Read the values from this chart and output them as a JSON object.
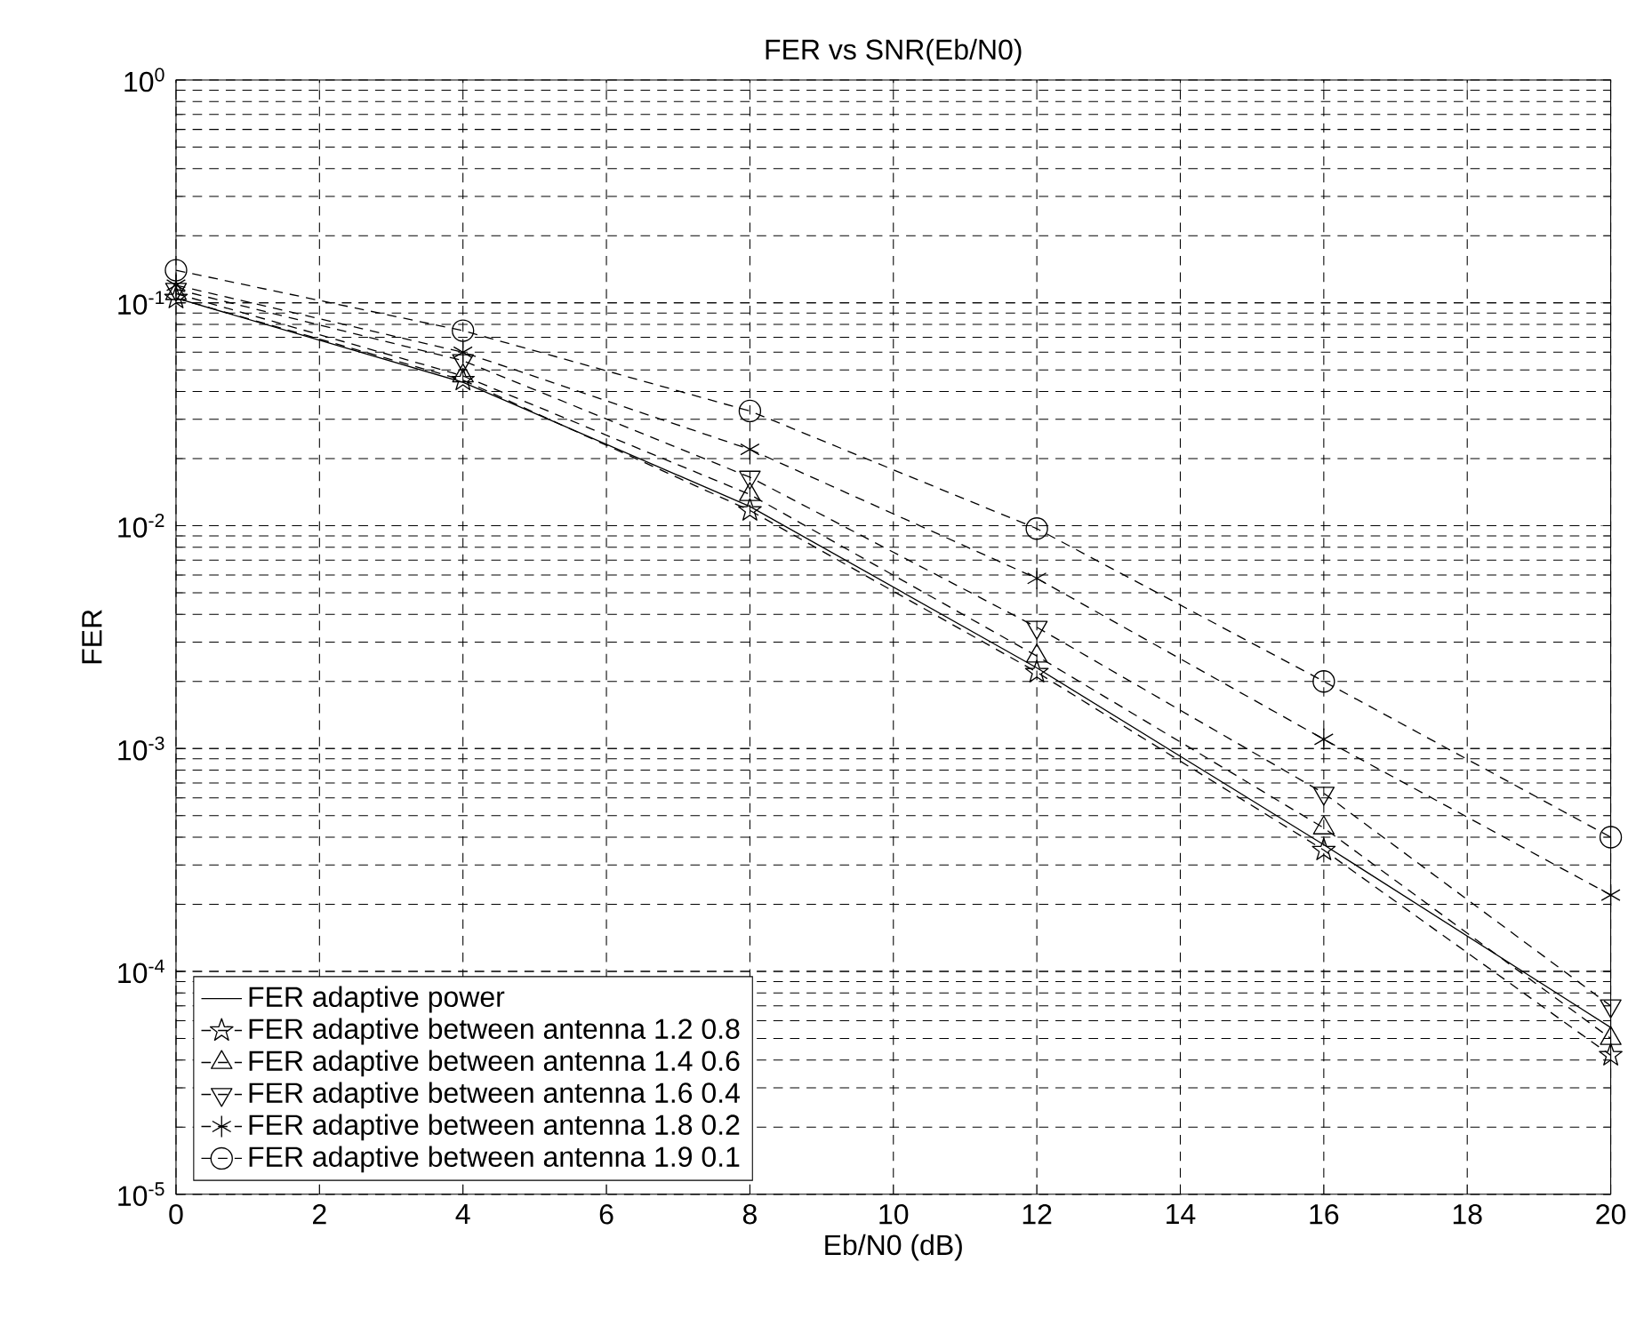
{
  "chart_data": {
    "type": "line",
    "title": "FER vs SNR(Eb/N0)",
    "xlabel": "Eb/N0 (dB)",
    "ylabel": "FER",
    "x": [
      0,
      4,
      8,
      12,
      16,
      20
    ],
    "series": [
      {
        "name": "FER adaptive power",
        "color": "#000000",
        "marker": "none",
        "line_style": "solid",
        "values": [
          0.105,
          0.044,
          0.0122,
          0.0023,
          0.00037,
          5.6e-05
        ]
      },
      {
        "name": "FER adaptive between antenna 1.2 0.8",
        "color": "#000000",
        "marker": "star",
        "line_style": "dashed",
        "values": [
          0.105,
          0.045,
          0.0117,
          0.0022,
          0.00035,
          4.2e-05
        ]
      },
      {
        "name": "FER adaptive between antenna 1.4 0.6",
        "color": "#000000",
        "marker": "triangle",
        "line_style": "dashed",
        "values": [
          0.11,
          0.047,
          0.0138,
          0.0026,
          0.00044,
          5e-05
        ]
      },
      {
        "name": "FER adaptive between antenna 1.6 0.4",
        "color": "#000000",
        "marker": "triangle-down",
        "line_style": "dashed",
        "values": [
          0.115,
          0.055,
          0.0165,
          0.0035,
          0.00063,
          7e-05
        ]
      },
      {
        "name": "FER adaptive between antenna 1.8 0.2",
        "color": "#000000",
        "marker": "cross",
        "line_style": "dashed",
        "values": [
          0.12,
          0.06,
          0.022,
          0.0058,
          0.0011,
          0.00022
        ]
      },
      {
        "name": "FER adaptive between antenna 1.9 0.1",
        "color": "#000000",
        "marker": "circle",
        "line_style": "dashed",
        "values": [
          0.14,
          0.075,
          0.0327,
          0.0097,
          0.002,
          0.0004
        ]
      }
    ],
    "xlim": [
      0,
      20
    ],
    "ylim": [
      1e-05,
      1
    ],
    "xticks": [
      0,
      2,
      4,
      6,
      8,
      10,
      12,
      14,
      16,
      18,
      20
    ],
    "yticks": [
      {
        "value": 1e-05,
        "label": "10$^{-5}$"
      },
      {
        "value": 0.0001,
        "label": "10$^{-4}$"
      },
      {
        "value": 0.001,
        "label": "10$^{-3}$"
      },
      {
        "value": 0.01,
        "label": "10$^{-2}$"
      },
      {
        "value": 0.1,
        "label": "10$^{-1}$"
      },
      {
        "value": 1,
        "label": "10$^{0}$"
      }
    ],
    "log": "y",
    "grid": true,
    "legend": "bottom left"
  }
}
